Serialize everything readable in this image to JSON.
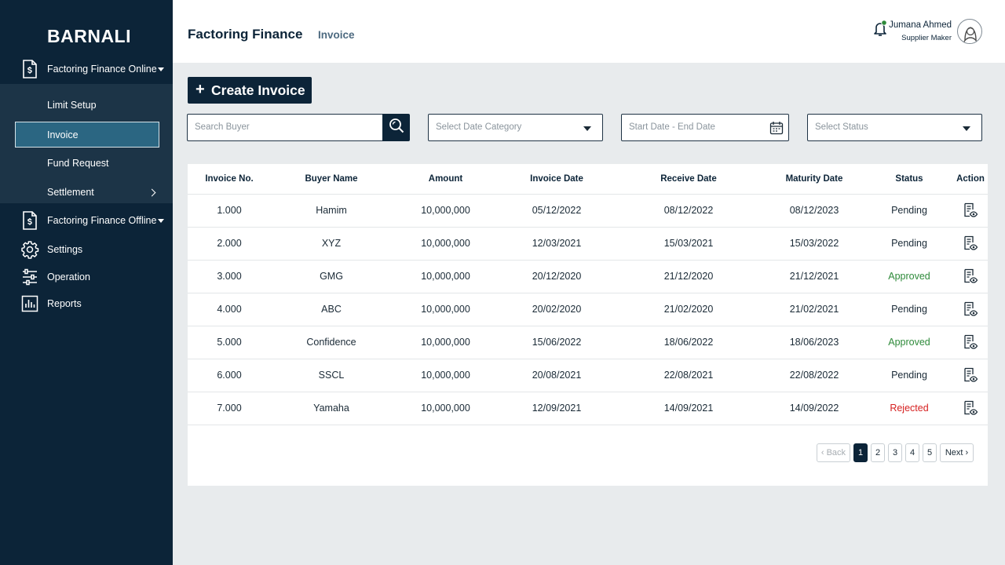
{
  "sidebar": {
    "brand": "BARNALI",
    "menu_online": {
      "label": "Factoring Finance Online",
      "icon": "document-dollar-icon"
    },
    "submenu": [
      {
        "label": "Limit Setup"
      },
      {
        "label": "Invoice",
        "active": true
      },
      {
        "label": "Fund Request"
      },
      {
        "label": "Settlement"
      }
    ],
    "menu_offline": {
      "label": "Factoring Finance Offline",
      "icon": "document-dollar-icon"
    },
    "settings": {
      "label": "Settings",
      "icon": "gear-icon"
    },
    "operation": {
      "label": "Operation",
      "icon": "sliders-icon"
    },
    "reports": {
      "label": "Reports",
      "icon": "bar-chart-icon"
    }
  },
  "header": {
    "title": "Factoring Finance",
    "breadcrumb": "Invoice",
    "user": {
      "name": "Jumana Ahmed",
      "role": "Supplier Maker"
    }
  },
  "toolbar": {
    "create_label": "Create Invoice",
    "search_placeholder": "Search Buyer",
    "date_category_placeholder": "Select Date Category",
    "date_range_placeholder": "Start Date - End Date",
    "status_placeholder": "Select Status"
  },
  "table": {
    "columns": [
      "Invoice No.",
      "Buyer Name",
      "Amount",
      "Invoice Date",
      "Receive Date",
      "Maturity Date",
      "Status",
      "Action"
    ],
    "rows": [
      {
        "invoice_no": "1.000",
        "buyer": "Hamim",
        "amount": "10,000,000",
        "invoice_date": "05/12/2022",
        "receive_date": "08/12/2022",
        "maturity_date": "08/12/2023",
        "status": "Pending"
      },
      {
        "invoice_no": "2.000",
        "buyer": "XYZ",
        "amount": "10,000,000",
        "invoice_date": "12/03/2021",
        "receive_date": "15/03/2021",
        "maturity_date": "15/03/2022",
        "status": "Pending"
      },
      {
        "invoice_no": "3.000",
        "buyer": "GMG",
        "amount": "10,000,000",
        "invoice_date": "20/12/2020",
        "receive_date": "21/12/2020",
        "maturity_date": "21/12/2021",
        "status": "Approved"
      },
      {
        "invoice_no": "4.000",
        "buyer": "ABC",
        "amount": "10,000,000",
        "invoice_date": "20/02/2020",
        "receive_date": "21/02/2020",
        "maturity_date": "21/02/2021",
        "status": "Pending"
      },
      {
        "invoice_no": "5.000",
        "buyer": "Confidence",
        "amount": "10,000,000",
        "invoice_date": "15/06/2022",
        "receive_date": "18/06/2022",
        "maturity_date": "18/06/2023",
        "status": "Approved"
      },
      {
        "invoice_no": "6.000",
        "buyer": "SSCL",
        "amount": "10,000,000",
        "invoice_date": "20/08/2021",
        "receive_date": "22/08/2021",
        "maturity_date": "22/08/2022",
        "status": "Pending"
      },
      {
        "invoice_no": "7.000",
        "buyer": "Yamaha",
        "amount": "10,000,000",
        "invoice_date": "12/09/2021",
        "receive_date": "14/09/2021",
        "maturity_date": "14/09/2022",
        "status": "Rejected"
      }
    ]
  },
  "pagination": {
    "back_label": "Back",
    "next_label": "Next",
    "pages": [
      "1",
      "2",
      "3",
      "4",
      "5"
    ],
    "current": "1"
  },
  "colors": {
    "sidebar_bg": "#0c2438",
    "submenu_bg": "#1c3447",
    "active_item_bg": "#2b6682",
    "approved": "#2e8a3a",
    "rejected": "#d62020",
    "notification_dot": "#2e8a3a"
  }
}
